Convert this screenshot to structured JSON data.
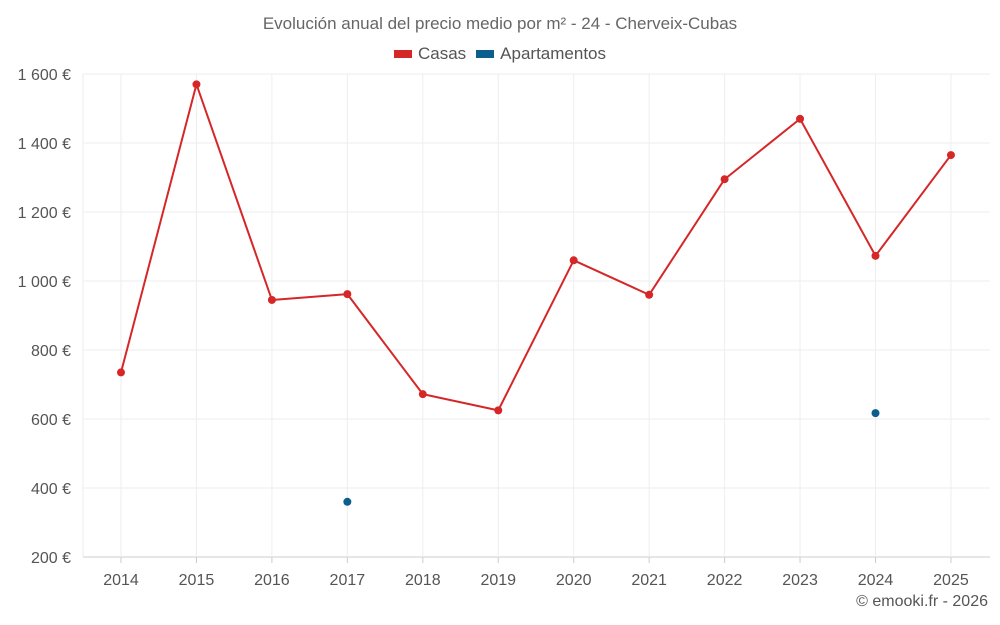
{
  "chart_data": {
    "type": "line",
    "title": "Evolución anual del precio medio por m² - 24 - Cherveix-Cubas",
    "categories": [
      "2014",
      "2015",
      "2016",
      "2017",
      "2018",
      "2019",
      "2020",
      "2021",
      "2022",
      "2023",
      "2024",
      "2025"
    ],
    "y_ticks": [
      "200 €",
      "400 €",
      "600 €",
      "800 €",
      "1 000 €",
      "1 200 €",
      "1 400 €",
      "1 600 €"
    ],
    "ylim": [
      200,
      1600
    ],
    "series": [
      {
        "name": "Casas",
        "color": "#d62728",
        "line": true,
        "values": [
          735,
          1570,
          945,
          962,
          672,
          625,
          1060,
          960,
          1295,
          1470,
          1073,
          1365
        ]
      },
      {
        "name": "Apartamentos",
        "color": "#0b5e8e",
        "line": false,
        "values": [
          null,
          null,
          null,
          360,
          null,
          null,
          null,
          null,
          null,
          null,
          617,
          null
        ]
      }
    ],
    "grid": true,
    "legend_position": "top-center"
  },
  "credit": "© emooki.fr - 2026"
}
